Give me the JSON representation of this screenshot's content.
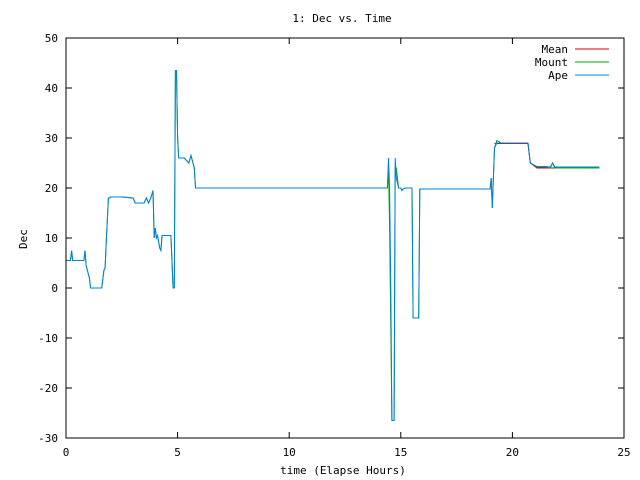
{
  "chart_data": {
    "type": "line",
    "title": "1: Dec vs. Time",
    "xlabel": "time (Elapse Hours)",
    "ylabel": "Dec",
    "xlim": [
      0,
      25
    ],
    "ylim": [
      -30,
      50
    ],
    "xticks": [
      0,
      5,
      10,
      15,
      20,
      25
    ],
    "yticks": [
      -30,
      -20,
      -10,
      0,
      10,
      20,
      30,
      40,
      50
    ],
    "grid": false,
    "legend_position": "top-right",
    "series": [
      {
        "name": "Mean",
        "color": "#cc0000",
        "x": [
          19.2,
          20.7,
          20.8,
          21.1,
          21.9,
          22.0,
          23.9
        ],
        "y": [
          28.9,
          28.9,
          25.0,
          24.0,
          24.0,
          24.0,
          24.0
        ]
      },
      {
        "name": "Mount",
        "color": "#00aa00",
        "x": [
          0.0,
          0.2,
          0.25,
          0.3,
          0.8,
          0.85,
          0.9,
          1.05,
          1.1,
          1.2,
          1.6,
          1.7,
          1.75,
          1.8,
          1.9,
          1.95,
          2.0,
          2.5,
          3.0,
          3.1,
          3.5,
          3.6,
          3.7,
          3.8,
          3.9,
          3.95,
          4.0,
          4.05,
          4.1,
          4.2,
          4.25,
          4.3,
          4.4,
          4.5,
          4.7,
          4.8,
          4.85,
          4.9,
          4.95,
          5.0,
          5.05,
          5.1,
          5.3,
          5.5,
          5.6,
          5.75,
          5.8,
          5.85,
          14.3,
          14.4,
          14.45,
          14.5,
          14.55,
          14.6,
          14.65,
          14.7,
          14.75,
          14.8,
          14.9,
          14.95,
          15.0,
          15.05,
          15.1,
          15.2,
          15.5,
          15.55,
          15.6,
          15.8,
          15.85,
          19.0,
          19.05,
          19.1,
          19.2,
          19.3,
          19.5,
          20.0,
          20.7,
          20.8,
          21.0,
          21.1,
          21.5,
          21.7,
          21.8,
          21.9,
          22.0,
          23.9
        ],
        "y": [
          5.5,
          5.5,
          7.5,
          5.5,
          5.5,
          7.5,
          4.5,
          2.0,
          0.0,
          0.0,
          0.0,
          3.5,
          4.0,
          9.0,
          18.0,
          18.0,
          18.2,
          18.2,
          18.0,
          17.0,
          17.0,
          18.0,
          17.0,
          18.0,
          19.5,
          10.0,
          12.0,
          10.0,
          10.5,
          8.0,
          7.5,
          10.5,
          10.5,
          10.5,
          10.5,
          0.0,
          0.0,
          43.5,
          43.5,
          30.0,
          26.0,
          26.0,
          26.0,
          25.0,
          26.5,
          24.0,
          20.0,
          20.0,
          20.0,
          20.0,
          24.0,
          12.0,
          -8.0,
          -26.5,
          -26.5,
          -26.5,
          24.0,
          24.0,
          20.0,
          20.0,
          20.0,
          19.5,
          19.8,
          20.0,
          20.0,
          -6.0,
          -6.0,
          -6.0,
          19.8,
          19.8,
          22.0,
          16.0,
          28.0,
          29.0,
          29.0,
          29.0,
          29.0,
          25.0,
          24.5,
          24.2,
          24.2,
          24.0,
          25.0,
          24.0,
          24.0,
          24.0
        ]
      },
      {
        "name": "Ape",
        "color": "#0080dd",
        "x": [
          0.0,
          0.2,
          0.25,
          0.3,
          0.8,
          0.85,
          0.9,
          1.05,
          1.1,
          1.2,
          1.6,
          1.7,
          1.75,
          1.8,
          1.9,
          1.95,
          2.0,
          2.5,
          3.0,
          3.1,
          3.5,
          3.6,
          3.7,
          3.8,
          3.9,
          3.95,
          4.0,
          4.05,
          4.1,
          4.2,
          4.25,
          4.3,
          4.4,
          4.5,
          4.7,
          4.8,
          4.85,
          4.9,
          4.95,
          5.0,
          5.05,
          5.1,
          5.3,
          5.5,
          5.6,
          5.75,
          5.8,
          5.85,
          14.3,
          14.4,
          14.45,
          14.5,
          14.55,
          14.6,
          14.65,
          14.7,
          14.75,
          14.8,
          14.9,
          14.95,
          15.0,
          15.05,
          15.1,
          15.2,
          15.5,
          15.55,
          15.6,
          15.8,
          15.85,
          19.0,
          19.05,
          19.1,
          19.2,
          19.3,
          19.5,
          20.0,
          20.7,
          20.8,
          21.0,
          21.1,
          21.5,
          21.7,
          21.8,
          21.9,
          22.0,
          23.9
        ],
        "y": [
          5.5,
          5.5,
          7.5,
          5.5,
          5.5,
          7.5,
          4.5,
          2.0,
          0.0,
          0.0,
          0.0,
          3.5,
          4.0,
          9.0,
          18.0,
          18.0,
          18.2,
          18.2,
          18.0,
          17.0,
          17.0,
          18.0,
          17.0,
          18.0,
          19.5,
          10.0,
          12.0,
          10.0,
          10.5,
          8.0,
          7.5,
          10.5,
          10.5,
          10.5,
          10.5,
          0.0,
          0.0,
          43.5,
          43.5,
          30.0,
          26.0,
          26.0,
          26.0,
          25.0,
          26.5,
          24.0,
          20.0,
          20.0,
          20.0,
          20.0,
          26.0,
          20.0,
          0.0,
          -26.5,
          -26.5,
          -26.5,
          26.0,
          22.0,
          20.0,
          20.0,
          20.0,
          19.5,
          19.8,
          20.0,
          20.0,
          -6.0,
          -6.0,
          -6.0,
          19.8,
          19.8,
          22.0,
          16.0,
          28.0,
          29.5,
          29.0,
          29.0,
          29.0,
          25.0,
          24.5,
          24.3,
          24.3,
          24.2,
          25.0,
          24.2,
          24.2,
          24.2
        ]
      }
    ]
  }
}
